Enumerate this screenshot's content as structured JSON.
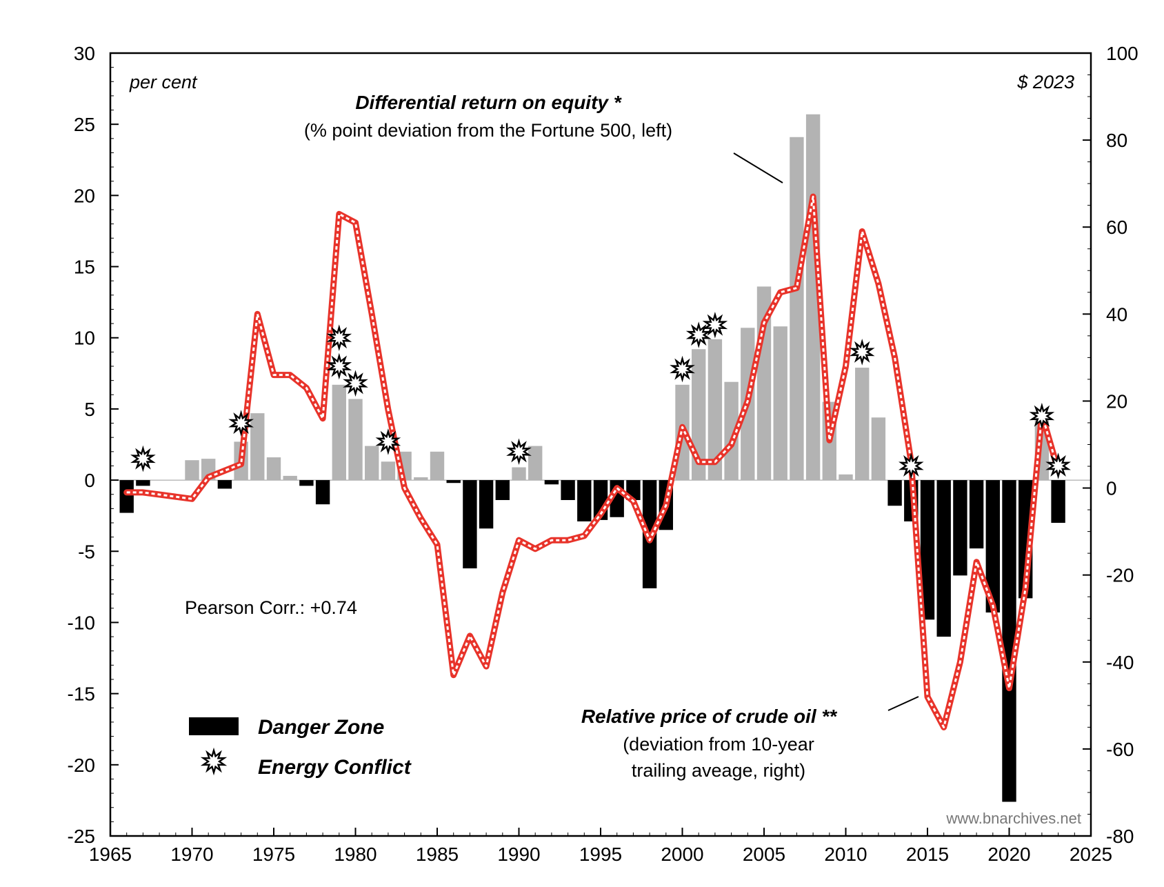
{
  "chart_data": {
    "type": "bar+line",
    "x": [
      1966,
      1967,
      1968,
      1969,
      1970,
      1971,
      1972,
      1973,
      1974,
      1975,
      1976,
      1977,
      1978,
      1979,
      1980,
      1981,
      1982,
      1983,
      1984,
      1985,
      1986,
      1987,
      1988,
      1989,
      1990,
      1991,
      1992,
      1993,
      1994,
      1995,
      1996,
      1997,
      1998,
      1999,
      2000,
      2001,
      2002,
      2003,
      2004,
      2005,
      2006,
      2007,
      2008,
      2009,
      2010,
      2011,
      2012,
      2013,
      2014,
      2015,
      2016,
      2017,
      2018,
      2019,
      2020,
      2021,
      2022,
      2023
    ],
    "series": [
      {
        "name": "Differential return on equity",
        "axis": "left",
        "kind": "bar",
        "values": [
          -2.3,
          -0.4,
          0,
          0,
          1.4,
          1.5,
          -0.6,
          2.7,
          4.7,
          1.6,
          0.3,
          -0.4,
          -1.7,
          6.7,
          5.7,
          2.4,
          1.3,
          2.0,
          0.2,
          2.0,
          -0.2,
          -6.2,
          -3.4,
          -1.4,
          0.9,
          2.4,
          -0.3,
          -1.4,
          -2.9,
          -2.8,
          -2.6,
          -1.4,
          -7.6,
          -3.5,
          6.7,
          9.2,
          9.9,
          6.9,
          10.7,
          13.6,
          10.8,
          24.1,
          25.7,
          5.5,
          0.4,
          7.9,
          4.4,
          -1.8,
          -2.9,
          -9.8,
          -11.0,
          -6.7,
          -4.8,
          -9.3,
          -22.6,
          -8.3,
          4.3,
          -3.0
        ]
      },
      {
        "name": "Relative price of crude oil",
        "axis": "right",
        "kind": "line",
        "values": [
          -1,
          -1,
          -1.5,
          -2,
          -2.5,
          2.5,
          4,
          5.5,
          40,
          26,
          26,
          23,
          16,
          63,
          61,
          40,
          18,
          0,
          -7,
          -13,
          -43,
          -34,
          -41,
          -24,
          -12,
          -14,
          -12,
          -12,
          -11,
          -6,
          0,
          -3,
          -12,
          -4,
          14,
          6,
          6,
          10,
          20,
          38,
          45,
          46,
          67,
          11,
          28,
          59,
          47,
          30,
          6,
          -48,
          -55,
          -40,
          -17,
          -27,
          -46,
          -23,
          17,
          4
        ]
      }
    ],
    "energy_conflict_years": [
      1967,
      1973,
      1979,
      1980,
      1982,
      1990,
      2000,
      2001,
      2002,
      2011,
      2014,
      2022,
      2023
    ],
    "energy_conflict_markers": [
      {
        "year": 1967,
        "y": 1.5
      },
      {
        "year": 1973,
        "y": 4.0
      },
      {
        "year": 1979,
        "y": 10.0
      },
      {
        "year": 1979,
        "y": 8.0
      },
      {
        "year": 1980,
        "y": 6.8
      },
      {
        "year": 1982,
        "y": 2.7
      },
      {
        "year": 1990,
        "y": 2.0
      },
      {
        "year": 2000,
        "y": 7.8
      },
      {
        "year": 2001,
        "y": 10.2
      },
      {
        "year": 2002,
        "y": 10.9
      },
      {
        "year": 2011,
        "y": 9.0
      },
      {
        "year": 2014,
        "y": 1.0
      },
      {
        "year": 2022,
        "y": 4.5
      },
      {
        "year": 2023,
        "y": 1.0
      }
    ],
    "xlim": [
      1965,
      2025
    ],
    "ylim_left": [
      -25,
      30
    ],
    "ylim_right": [
      -80,
      100
    ],
    "xticks": [
      1965,
      1970,
      1975,
      1980,
      1985,
      1990,
      1995,
      2000,
      2005,
      2010,
      2015,
      2020,
      2025
    ],
    "yticks_left": [
      30,
      25,
      20,
      15,
      10,
      5,
      0,
      -5,
      -10,
      -15,
      -20,
      -25
    ],
    "yticks_right": [
      100,
      80,
      60,
      40,
      20,
      0,
      -20,
      -40,
      -60,
      -80
    ],
    "left_unit": "per cent",
    "right_unit": "$ 2023",
    "annotation_equity_title": "Differential return on equity *",
    "annotation_equity_sub": "(% point deviation from the Fortune 500, left)",
    "annotation_oil_title": "Relative price of crude oil **",
    "annotation_oil_sub1": "(deviation from 10-year",
    "annotation_oil_sub2": "trailing aveage, right)",
    "correlation": "Pearson Corr.: +0.74",
    "legend": [
      "Danger Zone",
      "Energy Conflict"
    ],
    "source": "www.bnarchives.net",
    "colors": {
      "bar_positive": "#b3b3b3",
      "bar_negative": "#000000",
      "line_outer": "#e8332a",
      "line_inner": "#ffffff"
    }
  }
}
